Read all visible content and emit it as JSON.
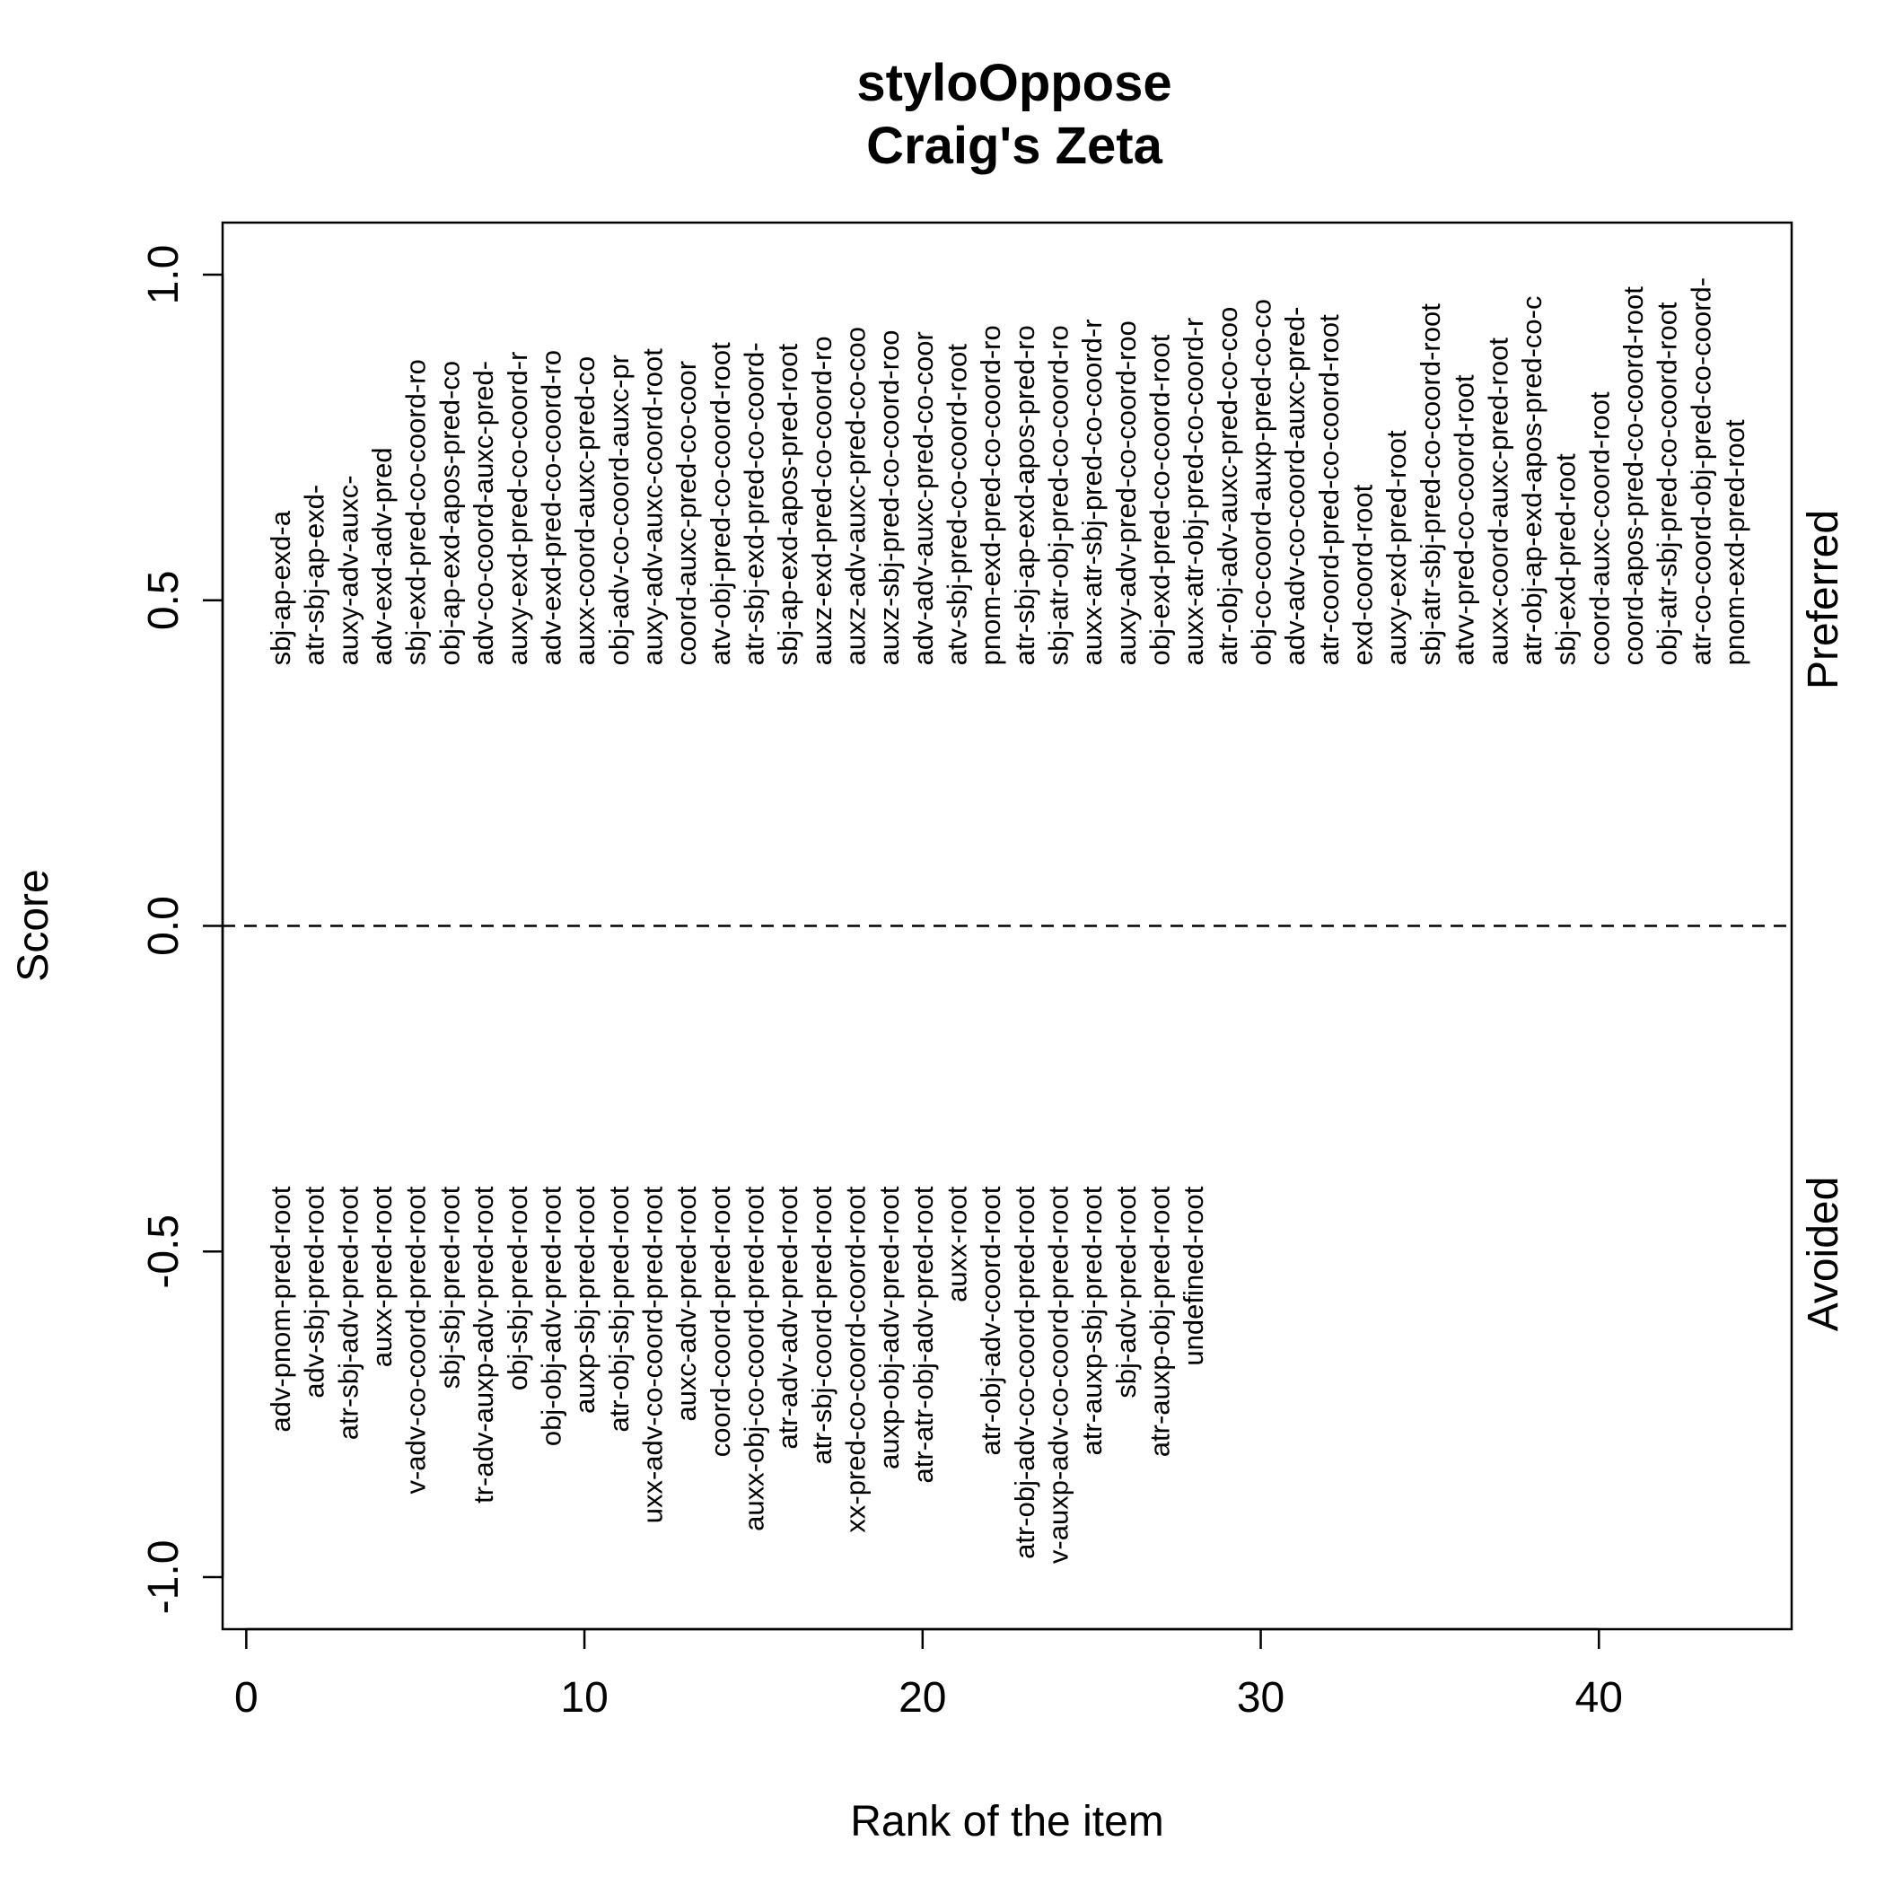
{
  "chart_data": {
    "type": "text-scatter",
    "title": "styloOppose",
    "subtitle": "Craig's Zeta",
    "xlabel": "Rank of the item",
    "ylabel": "Score",
    "xlim": [
      -0.7,
      45.7
    ],
    "ylim": [
      -1.08,
      1.08
    ],
    "xticks": [
      0,
      10,
      20,
      30,
      40
    ],
    "yticks": [
      -1.0,
      -0.5,
      0.0,
      0.5,
      1.0
    ],
    "ytick_labels": [
      "-1.0",
      "-0.5",
      "0.0",
      "0.5",
      "1.0"
    ],
    "reference_line": {
      "y": 0,
      "style": "dashed"
    },
    "side_labels": {
      "top": "Preferred",
      "bottom": "Avoided"
    },
    "series": [
      {
        "name": "Preferred",
        "labels": [
          "sbj-ap-exd-a",
          "atr-sbj-ap-exd-",
          "auxy-adv-auxc-",
          "adv-exd-adv-pred",
          "sbj-exd-pred-co-coord-ro",
          "obj-ap-exd-apos-pred-co",
          "adv-co-coord-auxc-pred-",
          "auxy-exd-pred-co-coord-r",
          "adv-exd-pred-co-coord-ro",
          "auxx-coord-auxc-pred-co",
          "obj-adv-co-coord-auxc-pr",
          "auxy-adv-auxc-coord-root",
          "coord-auxc-pred-co-coor",
          "atv-obj-pred-co-coord-root",
          "atr-sbj-exd-pred-co-coord-",
          "sbj-ap-exd-apos-pred-root",
          "auxz-exd-pred-co-coord-ro",
          "auxz-adv-auxc-pred-co-coo",
          "auxz-sbj-pred-co-coord-roo",
          "adv-adv-auxc-pred-co-coor",
          "atv-sbj-pred-co-coord-root",
          "pnom-exd-pred-co-coord-ro",
          "atr-sbj-ap-exd-apos-pred-ro",
          "sbj-atr-obj-pred-co-coord-ro",
          "auxx-atr-sbj-pred-co-coord-r",
          "auxy-adv-pred-co-coord-roo",
          "obj-exd-pred-co-coord-root",
          "auxx-atr-obj-pred-co-coord-r",
          "atr-obj-adv-auxc-pred-co-coo",
          "obj-co-coord-auxp-pred-co-co",
          "adv-adv-co-coord-auxc-pred-",
          "atr-coord-pred-co-coord-root",
          "exd-coord-root",
          "auxy-exd-pred-root",
          "sbj-atr-sbj-pred-co-coord-root",
          "atvv-pred-co-coord-root",
          "auxx-coord-auxc-pred-root",
          "atr-obj-ap-exd-apos-pred-co-c",
          "sbj-exd-pred-root",
          "coord-auxc-coord-root",
          "coord-apos-pred-co-coord-root",
          "obj-atr-sbj-pred-co-coord-root",
          "atr-co-coord-obj-pred-co-coord-",
          "pnom-exd-pred-root"
        ],
        "x": [
          1,
          2,
          3,
          4,
          5,
          6,
          7,
          8,
          9,
          10,
          11,
          12,
          13,
          14,
          15,
          16,
          17,
          18,
          19,
          20,
          21,
          22,
          23,
          24,
          25,
          26,
          27,
          28,
          29,
          30,
          31,
          32,
          33,
          34,
          35,
          36,
          37,
          38,
          39,
          40,
          41,
          42,
          43,
          44
        ],
        "y": [
          0.4,
          0.4,
          0.4,
          0.4,
          0.4,
          0.4,
          0.4,
          0.4,
          0.4,
          0.4,
          0.4,
          0.4,
          0.4,
          0.4,
          0.4,
          0.4,
          0.4,
          0.4,
          0.4,
          0.4,
          0.4,
          0.4,
          0.4,
          0.4,
          0.4,
          0.4,
          0.4,
          0.4,
          0.4,
          0.4,
          0.4,
          0.4,
          0.4,
          0.4,
          0.4,
          0.4,
          0.4,
          0.4,
          0.4,
          0.4,
          0.4,
          0.4,
          0.4,
          0.4
        ]
      },
      {
        "name": "Avoided",
        "labels": [
          "adv-pnom-pred-root",
          "adv-sbj-pred-root",
          "atr-sbj-adv-pred-root",
          "auxx-pred-root",
          "v-adv-co-coord-pred-root",
          "sbj-sbj-pred-root",
          "tr-adv-auxp-adv-pred-root",
          "obj-sbj-pred-root",
          "obj-obj-adv-pred-root",
          "auxp-sbj-pred-root",
          "atr-obj-sbj-pred-root",
          "uxx-adv-co-coord-pred-root",
          "auxc-adv-pred-root",
          "coord-coord-pred-root",
          "auxx-obj-co-coord-pred-root",
          "atr-adv-adv-pred-root",
          "atr-sbj-coord-pred-root",
          "xx-pred-co-coord-coord-root",
          "auxp-obj-adv-pred-root",
          "atr-atr-obj-adv-pred-root",
          "auxx-root",
          "atr-obj-adv-coord-root",
          "atr-obj-adv-co-coord-pred-root",
          "v-auxp-adv-co-coord-pred-root",
          "atr-auxp-sbj-pred-root",
          "sbj-adv-pred-root",
          "atr-auxp-obj-pred-root",
          "undefined-root"
        ],
        "x": [
          1,
          2,
          3,
          4,
          5,
          6,
          7,
          8,
          9,
          10,
          11,
          12,
          13,
          14,
          15,
          16,
          17,
          18,
          19,
          20,
          21,
          22,
          23,
          24,
          25,
          26,
          27,
          28
        ],
        "y": [
          -0.4,
          -0.4,
          -0.4,
          -0.4,
          -0.4,
          -0.4,
          -0.4,
          -0.4,
          -0.4,
          -0.4,
          -0.4,
          -0.4,
          -0.4,
          -0.4,
          -0.4,
          -0.4,
          -0.4,
          -0.4,
          -0.4,
          -0.4,
          -0.4,
          -0.4,
          -0.4,
          -0.4,
          -0.4,
          -0.4,
          -0.4,
          -0.4
        ]
      }
    ]
  }
}
